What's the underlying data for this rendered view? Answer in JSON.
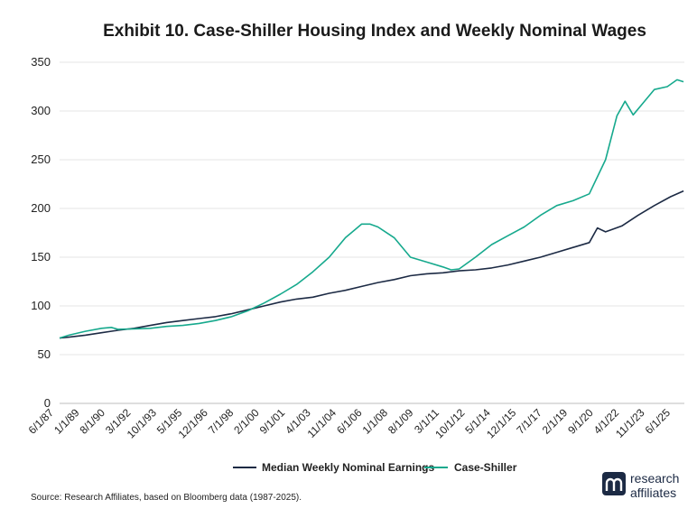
{
  "chart_data": {
    "type": "line",
    "title": "Exhibit 10. Case-Shiller Housing Index and Weekly Nominal Wages",
    "xlabel": "",
    "ylabel": "",
    "ylim": [
      0,
      350
    ],
    "yticks": [
      0,
      50,
      100,
      150,
      200,
      250,
      300,
      350
    ],
    "grid": true,
    "legend_position": "bottom",
    "x_tick_labels": [
      "6/1/87",
      "1/1/89",
      "8/1/90",
      "3/1/92",
      "10/1/93",
      "5/1/95",
      "12/1/96",
      "7/1/98",
      "2/1/00",
      "9/1/01",
      "4/1/03",
      "11/1/04",
      "6/1/06",
      "1/1/08",
      "8/1/09",
      "3/1/11",
      "10/1/12",
      "5/1/14",
      "12/1/15",
      "7/1/17",
      "2/1/19",
      "9/1/20",
      "4/1/22",
      "11/1/23",
      "6/1/25"
    ],
    "series": [
      {
        "name": "Median Weekly Nominal Earnings",
        "color": "#1c2a44",
        "points": [
          [
            1987.42,
            67
          ],
          [
            1988,
            68
          ],
          [
            1989,
            70
          ],
          [
            1990,
            72.5
          ],
          [
            1991,
            75
          ],
          [
            1992,
            77
          ],
          [
            1993,
            80
          ],
          [
            1994,
            83
          ],
          [
            1995,
            85
          ],
          [
            1996,
            87
          ],
          [
            1997,
            89
          ],
          [
            1998,
            92
          ],
          [
            1999,
            96
          ],
          [
            2000,
            100
          ],
          [
            2001,
            104
          ],
          [
            2002,
            107
          ],
          [
            2003,
            109
          ],
          [
            2004,
            113
          ],
          [
            2005,
            116
          ],
          [
            2006,
            120
          ],
          [
            2007,
            124
          ],
          [
            2008,
            127
          ],
          [
            2009,
            131
          ],
          [
            2010,
            133
          ],
          [
            2011,
            134
          ],
          [
            2012,
            136
          ],
          [
            2013,
            137
          ],
          [
            2014,
            139
          ],
          [
            2015,
            142
          ],
          [
            2016,
            146
          ],
          [
            2017,
            150
          ],
          [
            2018,
            155
          ],
          [
            2019,
            160
          ],
          [
            2020,
            165
          ],
          [
            2020.5,
            180
          ],
          [
            2021,
            176
          ],
          [
            2022,
            182
          ],
          [
            2023,
            193
          ],
          [
            2024,
            203
          ],
          [
            2025,
            212
          ],
          [
            2025.8,
            218
          ]
        ]
      },
      {
        "name": "Case-Shiller",
        "color": "#16a98d",
        "points": [
          [
            1987.42,
            67
          ],
          [
            1988,
            70
          ],
          [
            1989,
            74
          ],
          [
            1990,
            77
          ],
          [
            1990.6,
            78
          ],
          [
            1991,
            76
          ],
          [
            1992,
            76.5
          ],
          [
            1993,
            77
          ],
          [
            1994,
            79
          ],
          [
            1995,
            80
          ],
          [
            1996,
            82
          ],
          [
            1997,
            85
          ],
          [
            1998,
            89
          ],
          [
            1999,
            95
          ],
          [
            2000,
            103
          ],
          [
            2001,
            112
          ],
          [
            2002,
            122
          ],
          [
            2003,
            135
          ],
          [
            2004,
            150
          ],
          [
            2005,
            170
          ],
          [
            2006,
            184
          ],
          [
            2006.5,
            184
          ],
          [
            2007,
            181
          ],
          [
            2008,
            170
          ],
          [
            2009,
            150
          ],
          [
            2010,
            145
          ],
          [
            2011,
            140
          ],
          [
            2011.5,
            137
          ],
          [
            2012,
            138
          ],
          [
            2013,
            150
          ],
          [
            2014,
            163
          ],
          [
            2015,
            172
          ],
          [
            2016,
            181
          ],
          [
            2017,
            193
          ],
          [
            2018,
            203
          ],
          [
            2019,
            208
          ],
          [
            2020,
            215
          ],
          [
            2021,
            250
          ],
          [
            2021.7,
            295
          ],
          [
            2022.2,
            310
          ],
          [
            2022.7,
            296
          ],
          [
            2023.3,
            308
          ],
          [
            2024,
            322
          ],
          [
            2024.8,
            325
          ],
          [
            2025.4,
            332
          ],
          [
            2025.8,
            330
          ]
        ]
      }
    ]
  },
  "source": "Source: Research Affiliates, based on Bloomberg data (1987-2025).",
  "logo": {
    "line1": "research",
    "line2": "affiliates"
  }
}
